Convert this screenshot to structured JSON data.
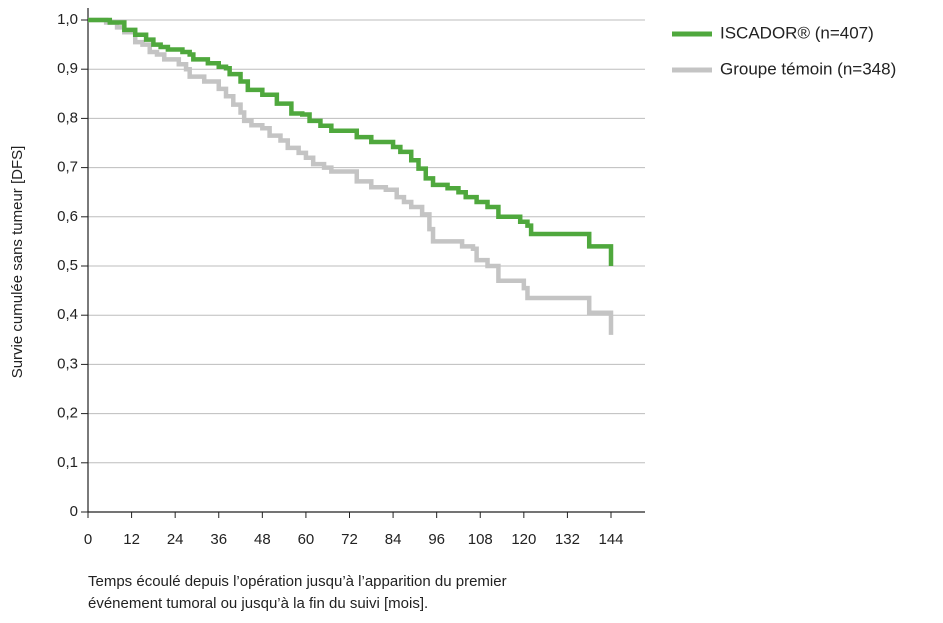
{
  "chart_data": {
    "type": "line",
    "step": true,
    "ylabel": "Survie cumulée sans tumeur [DFS]",
    "xlabel": [
      "Temps écoulé depuis l’opération jusqu’à l’apparition du premier",
      "événement tumoral ou jusqu’à la fin du suivi [mois]."
    ],
    "xlim": [
      0,
      144
    ],
    "xticks": [
      0,
      12,
      24,
      36,
      48,
      60,
      72,
      84,
      96,
      108,
      120,
      132,
      144
    ],
    "ylim": [
      0,
      1
    ],
    "yticks": [
      0,
      {
        "value": 0.1,
        "label": "0,1"
      },
      {
        "value": 0.2,
        "label": "0,2"
      },
      {
        "value": 0.3,
        "label": "0,3"
      },
      {
        "value": 0.4,
        "label": "0,4"
      },
      {
        "value": 0.5,
        "label": "0,5"
      },
      {
        "value": 0.6,
        "label": "0,6"
      },
      {
        "value": 0.7,
        "label": "0,7"
      },
      {
        "value": 0.8,
        "label": "0,8"
      },
      {
        "value": 0.9,
        "label": "0,9"
      },
      {
        "value": 1,
        "label": "1,0"
      }
    ],
    "grid": true,
    "legend": "right",
    "series": [
      {
        "name": "ISCADOR® (n=407)",
        "color": "#4fa83d",
        "x": [
          0,
          6,
          6,
          10,
          10,
          13,
          13,
          16,
          16,
          18,
          18,
          20,
          20,
          22,
          22,
          26,
          26,
          28,
          28,
          29,
          29,
          33,
          33,
          36,
          36,
          38,
          38,
          39,
          39,
          42,
          42,
          44,
          44,
          48,
          48,
          52,
          52,
          56,
          56,
          59,
          59,
          61,
          61,
          64,
          64,
          67,
          67,
          74,
          74,
          78,
          78,
          84,
          84,
          86,
          86,
          89,
          89,
          91,
          91,
          93,
          93,
          95,
          95,
          99,
          99,
          102,
          102,
          104,
          104,
          107,
          107,
          110,
          110,
          113,
          113,
          119,
          119,
          121,
          121,
          122,
          122,
          138,
          138,
          144,
          144
        ],
        "values": [
          1,
          1,
          0.995,
          0.995,
          0.98,
          0.98,
          0.97,
          0.97,
          0.96,
          0.96,
          0.95,
          0.95,
          0.945,
          0.945,
          0.94,
          0.94,
          0.935,
          0.935,
          0.93,
          0.93,
          0.92,
          0.92,
          0.912,
          0.912,
          0.905,
          0.905,
          0.902,
          0.902,
          0.89,
          0.89,
          0.875,
          0.875,
          0.858,
          0.858,
          0.848,
          0.848,
          0.83,
          0.83,
          0.81,
          0.81,
          0.808,
          0.808,
          0.795,
          0.795,
          0.785,
          0.785,
          0.775,
          0.775,
          0.762,
          0.762,
          0.752,
          0.752,
          0.742,
          0.742,
          0.732,
          0.732,
          0.715,
          0.715,
          0.698,
          0.698,
          0.678,
          0.678,
          0.665,
          0.665,
          0.658,
          0.658,
          0.65,
          0.65,
          0.64,
          0.64,
          0.63,
          0.63,
          0.62,
          0.62,
          0.6,
          0.6,
          0.59,
          0.59,
          0.582,
          0.582,
          0.565,
          0.565,
          0.54,
          0.54,
          0.5
        ]
      },
      {
        "name": "Groupe témoin (n=348)",
        "color": "#c4c4c4",
        "x": [
          0,
          5,
          5,
          8,
          8,
          10,
          10,
          13,
          13,
          15,
          15,
          17,
          17,
          19,
          19,
          21,
          21,
          25,
          25,
          27,
          27,
          28,
          28,
          32,
          32,
          36,
          36,
          38,
          38,
          40,
          40,
          42,
          42,
          43,
          43,
          45,
          45,
          48,
          48,
          50,
          50,
          53,
          53,
          55,
          55,
          58,
          58,
          60,
          60,
          62,
          62,
          65,
          65,
          67,
          67,
          74,
          74,
          78,
          78,
          82,
          82,
          85,
          85,
          87,
          87,
          89,
          89,
          92,
          92,
          94,
          94,
          95,
          95,
          103,
          103,
          106,
          106,
          107,
          107,
          110,
          110,
          113,
          113,
          120,
          120,
          121,
          121,
          138,
          138,
          144,
          144
        ],
        "values": [
          1,
          1,
          0.995,
          0.995,
          0.985,
          0.985,
          0.975,
          0.975,
          0.955,
          0.955,
          0.95,
          0.95,
          0.935,
          0.935,
          0.93,
          0.93,
          0.92,
          0.92,
          0.91,
          0.91,
          0.9,
          0.9,
          0.885,
          0.885,
          0.875,
          0.875,
          0.86,
          0.86,
          0.845,
          0.845,
          0.828,
          0.828,
          0.812,
          0.812,
          0.795,
          0.795,
          0.786,
          0.786,
          0.78,
          0.78,
          0.765,
          0.765,
          0.755,
          0.755,
          0.74,
          0.74,
          0.73,
          0.73,
          0.72,
          0.72,
          0.707,
          0.707,
          0.7,
          0.7,
          0.692,
          0.692,
          0.672,
          0.672,
          0.66,
          0.66,
          0.655,
          0.655,
          0.64,
          0.64,
          0.63,
          0.63,
          0.62,
          0.62,
          0.605,
          0.605,
          0.575,
          0.575,
          0.55,
          0.55,
          0.54,
          0.54,
          0.535,
          0.535,
          0.512,
          0.512,
          0.5,
          0.5,
          0.47,
          0.47,
          0.455,
          0.455,
          0.435,
          0.435,
          0.405,
          0.405,
          0.36
        ]
      }
    ]
  }
}
